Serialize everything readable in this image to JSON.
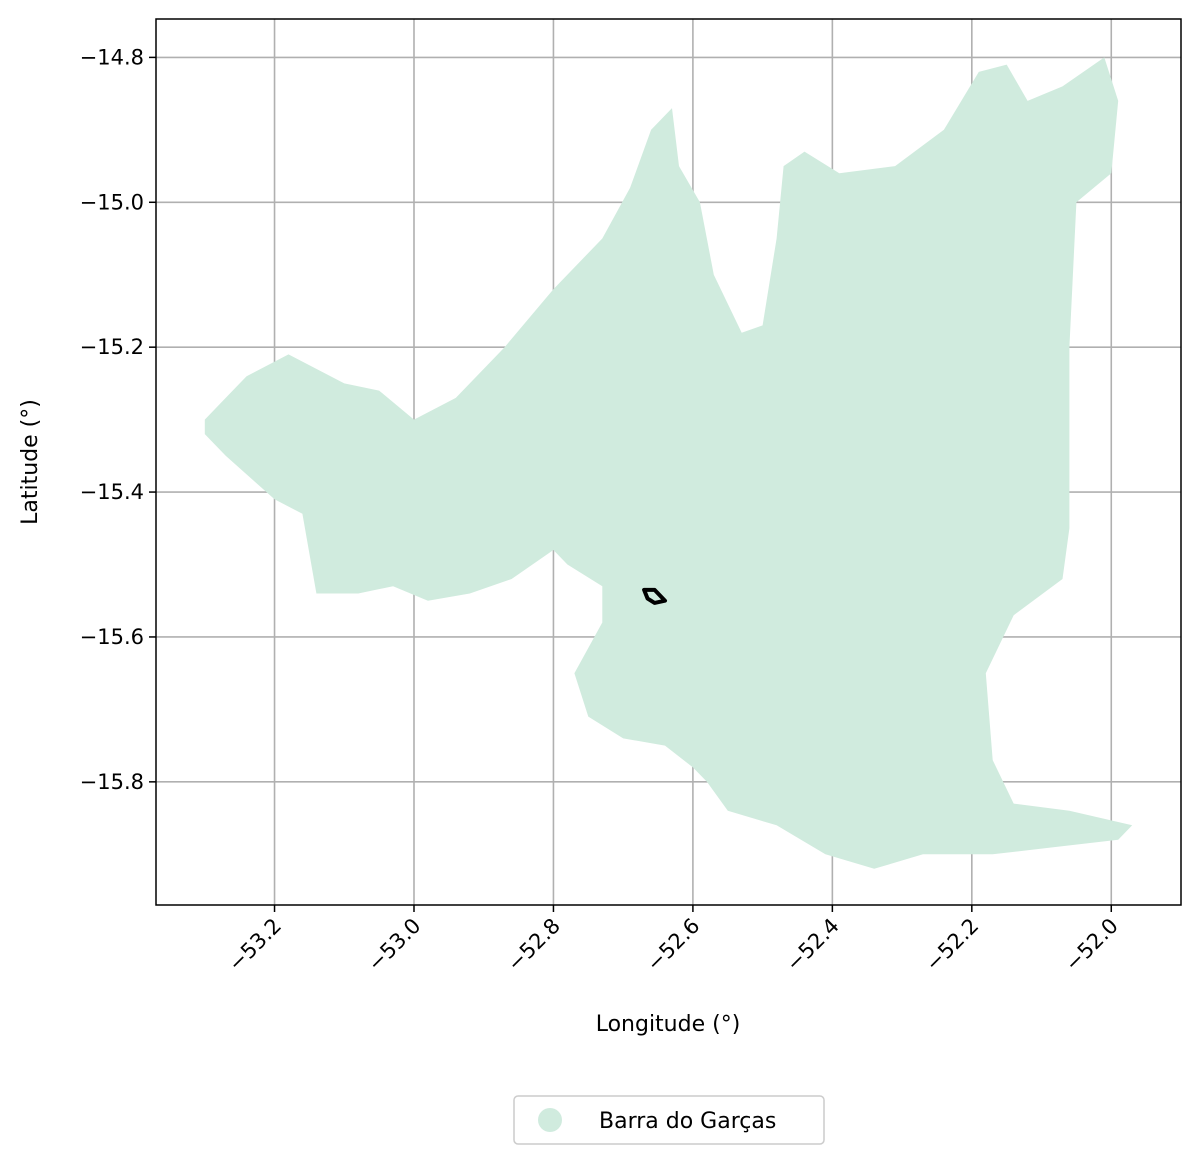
{
  "chart_data": {
    "type": "map",
    "xlabel": "Longitude (°)",
    "ylabel": "Latitude (°)",
    "xlim": [
      -53.37,
      -51.9
    ],
    "ylim": [
      -15.97,
      -14.747
    ],
    "xticks": [
      -53.2,
      -53.0,
      -52.8,
      -52.6,
      -52.4,
      -52.2,
      -52.0
    ],
    "xtick_labels": [
      "−53.2",
      "−53.0",
      "−52.8",
      "−52.6",
      "−52.4",
      "−52.2",
      "−52.0"
    ],
    "yticks": [
      -14.8,
      -15.0,
      -15.2,
      -15.4,
      -15.6,
      -15.8
    ],
    "ytick_labels": [
      "−14.8",
      "−15.0",
      "−15.2",
      "−15.4",
      "−15.6",
      "−15.8"
    ],
    "grid": true,
    "legend": {
      "placement": "bottom-center",
      "entries": [
        {
          "label": "Barra do Garças",
          "color": "#d0ebde"
        }
      ]
    },
    "region": {
      "name": "Barra do Garças",
      "color": "#d0ebde",
      "boundary": [
        [
          -53.3,
          -15.3
        ],
        [
          -53.27,
          -15.27
        ],
        [
          -53.24,
          -15.24
        ],
        [
          -53.18,
          -15.21
        ],
        [
          -53.1,
          -15.25
        ],
        [
          -53.05,
          -15.26
        ],
        [
          -53.0,
          -15.3
        ],
        [
          -52.94,
          -15.27
        ],
        [
          -52.87,
          -15.2
        ],
        [
          -52.8,
          -15.12
        ],
        [
          -52.73,
          -15.05
        ],
        [
          -52.69,
          -14.98
        ],
        [
          -52.66,
          -14.9
        ],
        [
          -52.63,
          -14.87
        ],
        [
          -52.62,
          -14.95
        ],
        [
          -52.59,
          -15.0
        ],
        [
          -52.57,
          -15.1
        ],
        [
          -52.53,
          -15.18
        ],
        [
          -52.5,
          -15.17
        ],
        [
          -52.48,
          -15.05
        ],
        [
          -52.47,
          -14.95
        ],
        [
          -52.44,
          -14.93
        ],
        [
          -52.39,
          -14.96
        ],
        [
          -52.31,
          -14.95
        ],
        [
          -52.24,
          -14.9
        ],
        [
          -52.19,
          -14.82
        ],
        [
          -52.15,
          -14.81
        ],
        [
          -52.12,
          -14.86
        ],
        [
          -52.07,
          -14.84
        ],
        [
          -52.01,
          -14.8
        ],
        [
          -51.99,
          -14.86
        ],
        [
          -52.0,
          -14.96
        ],
        [
          -52.05,
          -15.0
        ],
        [
          -52.06,
          -15.2
        ],
        [
          -52.06,
          -15.45
        ],
        [
          -52.07,
          -15.52
        ],
        [
          -52.14,
          -15.57
        ],
        [
          -52.18,
          -15.65
        ],
        [
          -52.17,
          -15.77
        ],
        [
          -52.14,
          -15.83
        ],
        [
          -52.06,
          -15.84
        ],
        [
          -51.97,
          -15.86
        ],
        [
          -51.99,
          -15.88
        ],
        [
          -52.08,
          -15.89
        ],
        [
          -52.17,
          -15.9
        ],
        [
          -52.27,
          -15.9
        ],
        [
          -52.34,
          -15.92
        ],
        [
          -52.41,
          -15.9
        ],
        [
          -52.48,
          -15.86
        ],
        [
          -52.55,
          -15.84
        ],
        [
          -52.58,
          -15.8
        ],
        [
          -52.6,
          -15.78
        ],
        [
          -52.64,
          -15.75
        ],
        [
          -52.7,
          -15.74
        ],
        [
          -52.75,
          -15.71
        ],
        [
          -52.77,
          -15.65
        ],
        [
          -52.73,
          -15.58
        ],
        [
          -52.73,
          -15.53
        ],
        [
          -52.78,
          -15.5
        ],
        [
          -52.8,
          -15.48
        ],
        [
          -52.86,
          -15.52
        ],
        [
          -52.92,
          -15.54
        ],
        [
          -52.98,
          -15.55
        ],
        [
          -53.03,
          -15.53
        ],
        [
          -53.08,
          -15.54
        ],
        [
          -53.14,
          -15.54
        ],
        [
          -53.16,
          -15.43
        ],
        [
          -53.2,
          -15.41
        ],
        [
          -53.27,
          -15.35
        ],
        [
          -53.3,
          -15.32
        ]
      ]
    },
    "marker": {
      "shape": "small-polygon-outline",
      "color": "#000000",
      "boundary": [
        [
          -52.67,
          -15.535
        ],
        [
          -52.655,
          -15.535
        ],
        [
          -52.64,
          -15.55
        ],
        [
          -52.655,
          -15.553
        ],
        [
          -52.665,
          -15.547
        ]
      ]
    }
  }
}
